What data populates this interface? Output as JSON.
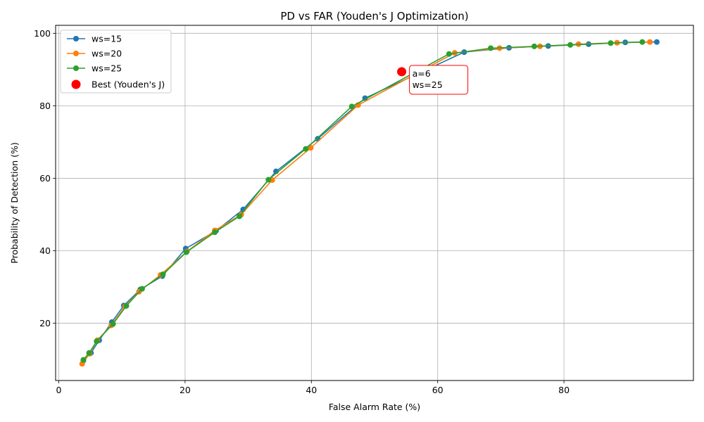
{
  "chart_data": {
    "type": "line",
    "title": "PD vs FAR (Youden's J Optimization)",
    "xlabel": "False Alarm Rate (%)",
    "ylabel": "Probability of Detection (%)",
    "xlim": [
      -0.5,
      100.5
    ],
    "ylim": [
      4.2,
      102.2
    ],
    "xticks": [
      0,
      20,
      40,
      60,
      80
    ],
    "yticks": [
      20,
      40,
      60,
      80,
      100
    ],
    "grid": true,
    "legend_position": "top-left",
    "series": [
      {
        "name": "ws=15",
        "color": "#1f77b4",
        "x": [
          94.7,
          89.7,
          83.9,
          77.5,
          71.3,
          64.2,
          48.5,
          41.0,
          34.4,
          29.2,
          24.9,
          20.1,
          16.4,
          12.9,
          10.3,
          8.4,
          6.4,
          5.1,
          3.9
        ],
        "y": [
          97.6,
          97.5,
          97.0,
          96.5,
          96.0,
          94.8,
          82.1,
          70.9,
          61.9,
          51.4,
          45.5,
          40.6,
          33.0,
          29.3,
          24.9,
          20.3,
          15.3,
          11.8,
          9.7
        ]
      },
      {
        "name": "ws=20",
        "color": "#ff7f0e",
        "x": [
          93.6,
          88.4,
          82.3,
          76.2,
          69.8,
          62.7,
          47.4,
          39.9,
          33.8,
          28.9,
          24.7,
          20.3,
          16.1,
          12.7,
          10.5,
          8.3,
          6.1,
          4.9,
          3.7
        ],
        "y": [
          97.6,
          97.4,
          97.0,
          96.4,
          95.9,
          94.6,
          80.2,
          68.4,
          59.5,
          50.0,
          45.6,
          39.8,
          33.3,
          28.7,
          24.7,
          19.4,
          15.3,
          11.6,
          8.8
        ]
      },
      {
        "name": "ws=25",
        "color": "#2ca02c",
        "x": [
          92.4,
          87.4,
          81.0,
          75.3,
          68.4,
          61.8,
          46.4,
          39.1,
          33.2,
          28.6,
          24.7,
          20.2,
          16.5,
          13.2,
          10.7,
          8.6,
          6.0,
          4.8,
          3.9
        ],
        "y": [
          97.6,
          97.3,
          96.8,
          96.4,
          95.9,
          94.3,
          79.8,
          68.1,
          59.6,
          49.5,
          45.1,
          39.6,
          33.5,
          29.5,
          24.8,
          19.8,
          15.0,
          11.8,
          9.9
        ]
      }
    ],
    "best_point": {
      "name": "Best (Youden's J)",
      "color": "#ff0000",
      "x": 54.3,
      "y": 89.4,
      "annotation_lines": [
        "a=6",
        "ws=25"
      ]
    }
  }
}
